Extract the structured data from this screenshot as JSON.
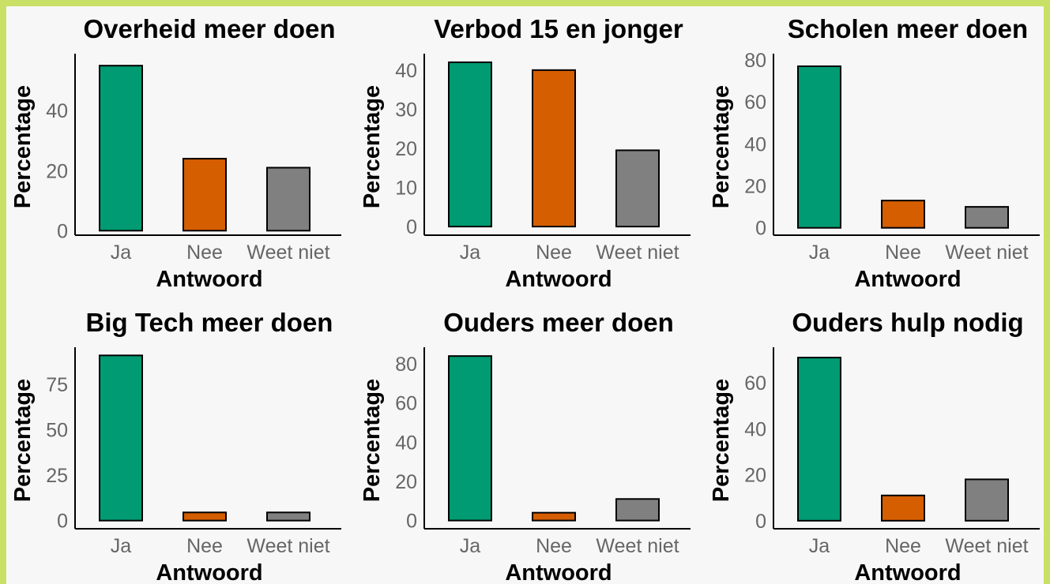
{
  "colors": {
    "Ja": "#009b72",
    "Nee": "#d55e00",
    "Weet niet": "#808080",
    "outer_background": "#c9e066",
    "panel_background": "#f7f7f7",
    "tick_text": "#666666"
  },
  "chart_data": [
    {
      "type": "bar",
      "title": "Overheid meer doen",
      "xlabel": "Antwoord",
      "ylabel": "Percentage",
      "categories": [
        "Ja",
        "Nee",
        "Weet niet"
      ],
      "values": [
        55,
        24,
        21
      ],
      "yticks": [
        0,
        20,
        40
      ],
      "ylim": [
        -1.5,
        59
      ],
      "grid": false,
      "legend": "none"
    },
    {
      "type": "bar",
      "title": "Verbod 15 en jonger",
      "xlabel": "Antwoord",
      "ylabel": "Percentage",
      "categories": [
        "Ja",
        "Nee",
        "Weet niet"
      ],
      "values": [
        42,
        40,
        19.5
      ],
      "yticks": [
        0,
        10,
        20,
        30,
        40
      ],
      "ylim": [
        -2.2,
        44.2
      ],
      "grid": false,
      "legend": "none"
    },
    {
      "type": "bar",
      "title": "Scholen meer doen",
      "xlabel": "Antwoord",
      "ylabel": "Percentage",
      "categories": [
        "Ja",
        "Nee",
        "Weet niet"
      ],
      "values": [
        77,
        13,
        10
      ],
      "yticks": [
        0,
        20,
        40,
        60,
        80
      ],
      "ylim": [
        -3.5,
        83
      ],
      "grid": false,
      "legend": "none"
    },
    {
      "type": "bar",
      "title": "Big Tech meer doen",
      "xlabel": "Antwoord",
      "ylabel": "Percentage",
      "categories": [
        "Ja",
        "Nee",
        "Weet niet"
      ],
      "values": [
        91,
        4.5,
        4.5
      ],
      "yticks": [
        0,
        25,
        50,
        75
      ],
      "ylim": [
        -4.5,
        95.5
      ],
      "grid": false,
      "legend": "none"
    },
    {
      "type": "bar",
      "title": "Ouders meer doen",
      "xlabel": "Antwoord",
      "ylabel": "Percentage",
      "categories": [
        "Ja",
        "Nee",
        "Weet niet"
      ],
      "values": [
        84,
        4,
        11
      ],
      "yticks": [
        0,
        20,
        40,
        60,
        80
      ],
      "ylim": [
        -4.2,
        88.5
      ],
      "grid": false,
      "legend": "none"
    },
    {
      "type": "bar",
      "title": "Ouders hulp nodig",
      "xlabel": "Antwoord",
      "ylabel": "Percentage",
      "categories": [
        "Ja",
        "Nee",
        "Weet niet"
      ],
      "values": [
        71,
        11,
        18
      ],
      "yticks": [
        0,
        20,
        40,
        60
      ],
      "ylim": [
        -3.5,
        75.5
      ],
      "grid": false,
      "legend": "none"
    }
  ]
}
